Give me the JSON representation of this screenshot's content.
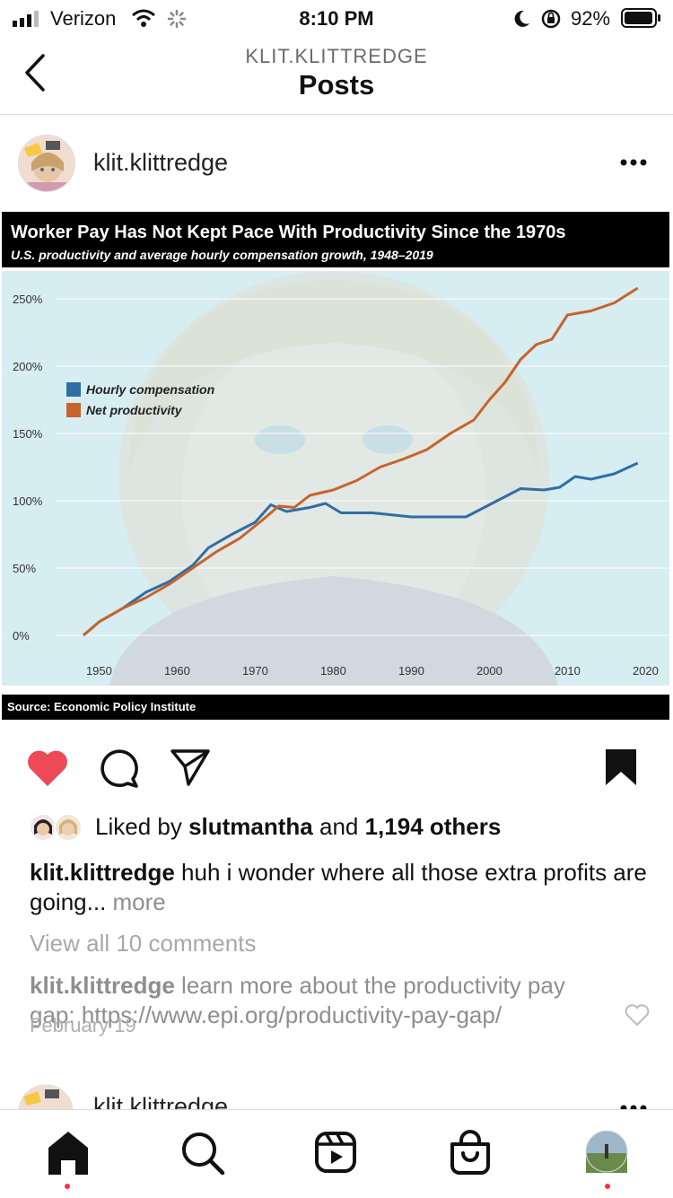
{
  "status_bar": {
    "carrier": "Verizon",
    "time": "8:10 PM",
    "battery": "92%"
  },
  "header": {
    "username": "KLIT.KLITTREDGE",
    "title": "Posts"
  },
  "post": {
    "username": "klit.klittredge",
    "liked_by_prefix": "Liked by ",
    "liked_by_user": "slutmantha",
    "liked_by_mid": " and ",
    "liked_by_others": "1,194 others",
    "caption_user": "klit.klittredge",
    "caption_text": " huh i wonder where all those extra profits are going...",
    "caption_more": " more",
    "view_comments": "View all 10 comments",
    "comment_user": "klit.klittredge",
    "comment_text": " learn more about the productivity pay gap: https://www.epi.org/productivity-pay-gap/",
    "comment_date": "February 19",
    "next_post_username": "klit.klittredge"
  },
  "colors": {
    "like_red": "#ed4956",
    "compensation_blue": "#2f6ea5",
    "productivity_orange": "#c8632b"
  },
  "icons": {
    "back": "chevron-left-icon",
    "more": "more-dots-icon",
    "like": "heart-filled-icon",
    "comment": "comment-icon",
    "share": "send-icon",
    "save": "bookmark-filled-icon",
    "home": "home-icon",
    "search": "search-icon",
    "reels": "reels-icon",
    "shop": "shop-icon",
    "profile": "profile-avatar"
  },
  "chart_data": {
    "type": "line",
    "title": "Worker Pay Has Not Kept Pace With Productivity Since the 1970s",
    "subtitle": "U.S. productivity and average hourly compensation growth, 1948–2019",
    "source": "Source: Economic Policy Institute",
    "xlim": [
      1948,
      2019
    ],
    "ylim": [
      0,
      250
    ],
    "x_ticks": [
      1950,
      1960,
      1970,
      1980,
      1990,
      2000,
      2010,
      2020
    ],
    "y_ticks": [
      0,
      50,
      100,
      150,
      200,
      250
    ],
    "y_tick_labels": [
      "0%",
      "50%",
      "100%",
      "150%",
      "200%",
      "250%"
    ],
    "legend_position": "upper-left",
    "series": [
      {
        "name": "Hourly compensation",
        "color": "#2f6ea5",
        "points": [
          [
            1948,
            0
          ],
          [
            1950,
            10
          ],
          [
            1953,
            20
          ],
          [
            1956,
            32
          ],
          [
            1959,
            40
          ],
          [
            1962,
            52
          ],
          [
            1964,
            65
          ],
          [
            1967,
            75
          ],
          [
            1970,
            84
          ],
          [
            1972,
            97
          ],
          [
            1974,
            92
          ],
          [
            1977,
            95
          ],
          [
            1979,
            98
          ],
          [
            1981,
            91
          ],
          [
            1985,
            91
          ],
          [
            1990,
            88
          ],
          [
            1995,
            88
          ],
          [
            1997,
            88
          ],
          [
            1999,
            94
          ],
          [
            2001,
            100
          ],
          [
            2004,
            109
          ],
          [
            2007,
            108
          ],
          [
            2009,
            110
          ],
          [
            2011,
            118
          ],
          [
            2013,
            116
          ],
          [
            2016,
            120
          ],
          [
            2019,
            128
          ]
        ]
      },
      {
        "name": "Net productivity",
        "color": "#c8632b",
        "points": [
          [
            1948,
            0
          ],
          [
            1950,
            10
          ],
          [
            1953,
            20
          ],
          [
            1956,
            28
          ],
          [
            1959,
            38
          ],
          [
            1962,
            50
          ],
          [
            1965,
            62
          ],
          [
            1968,
            72
          ],
          [
            1971,
            86
          ],
          [
            1973,
            96
          ],
          [
            1975,
            95
          ],
          [
            1977,
            104
          ],
          [
            1980,
            108
          ],
          [
            1983,
            115
          ],
          [
            1986,
            125
          ],
          [
            1989,
            131
          ],
          [
            1992,
            138
          ],
          [
            1995,
            150
          ],
          [
            1998,
            160
          ],
          [
            2000,
            175
          ],
          [
            2002,
            188
          ],
          [
            2004,
            205
          ],
          [
            2006,
            216
          ],
          [
            2008,
            220
          ],
          [
            2010,
            238
          ],
          [
            2013,
            241
          ],
          [
            2016,
            247
          ],
          [
            2019,
            258
          ]
        ]
      }
    ]
  }
}
